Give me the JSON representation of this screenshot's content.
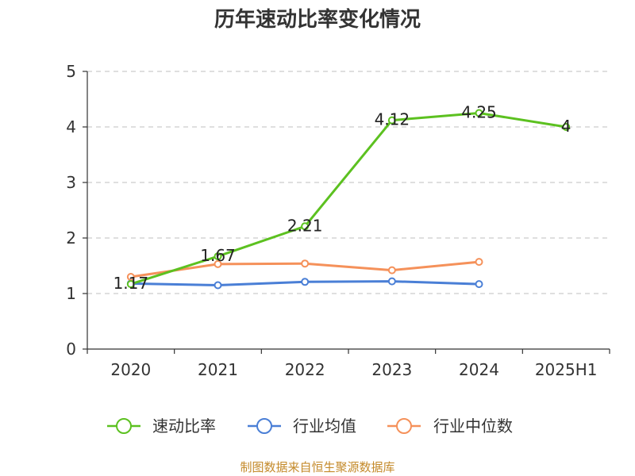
{
  "chart_data": {
    "type": "line",
    "title": "历年速动比率变化情况",
    "categories": [
      "2020",
      "2021",
      "2022",
      "2023",
      "2024",
      "2025H1"
    ],
    "ylim": [
      0,
      5
    ],
    "yticks": [
      "0",
      "1",
      "2",
      "3",
      "4",
      "5"
    ],
    "grid": true,
    "legend_position": "bottom",
    "series": [
      {
        "name": "速动比率",
        "color": "#5cc120",
        "values": [
          1.17,
          1.67,
          2.21,
          4.12,
          4.25,
          4.0
        ],
        "labels": [
          "1.17",
          "1.67",
          "2.21",
          "4.12",
          "4.25",
          "4"
        ]
      },
      {
        "name": "行业均值",
        "color": "#4a7fd6",
        "values": [
          1.18,
          1.15,
          1.21,
          1.22,
          1.17,
          null
        ]
      },
      {
        "name": "行业中位数",
        "color": "#f5915a",
        "values": [
          1.3,
          1.53,
          1.54,
          1.42,
          1.57,
          null
        ]
      }
    ],
    "source": "制图数据来自恒生聚源数据库"
  }
}
